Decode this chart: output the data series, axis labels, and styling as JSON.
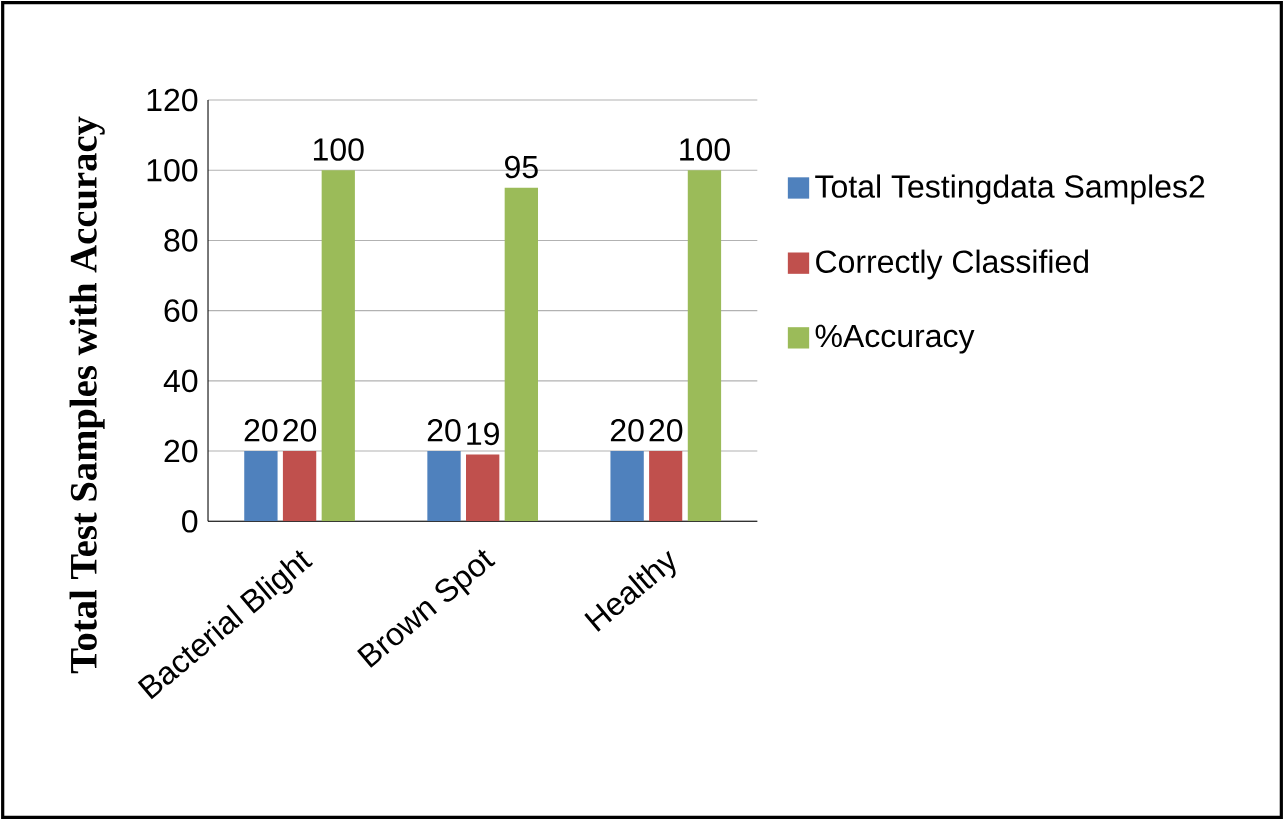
{
  "chart_data": {
    "type": "bar",
    "ylabel": "Total Test Samples with Accuracy",
    "categories": [
      "Bacterial Blight",
      "Brown Spot",
      "Healthy"
    ],
    "series": [
      {
        "name": "Total  Testingdata Samples2",
        "color": "#4f81bd",
        "values": [
          20,
          20,
          20
        ]
      },
      {
        "name": "Correctly Classified",
        "color": "#c0504d",
        "values": [
          20,
          19,
          20
        ]
      },
      {
        "name": "%Accuracy",
        "color": "#9bbb59",
        "values": [
          100,
          95,
          100
        ]
      }
    ],
    "ylim": [
      0,
      120
    ],
    "yticks": [
      0,
      20,
      40,
      60,
      80,
      100,
      120
    ],
    "grid": "y",
    "legend": "right",
    "data_labels": true
  }
}
